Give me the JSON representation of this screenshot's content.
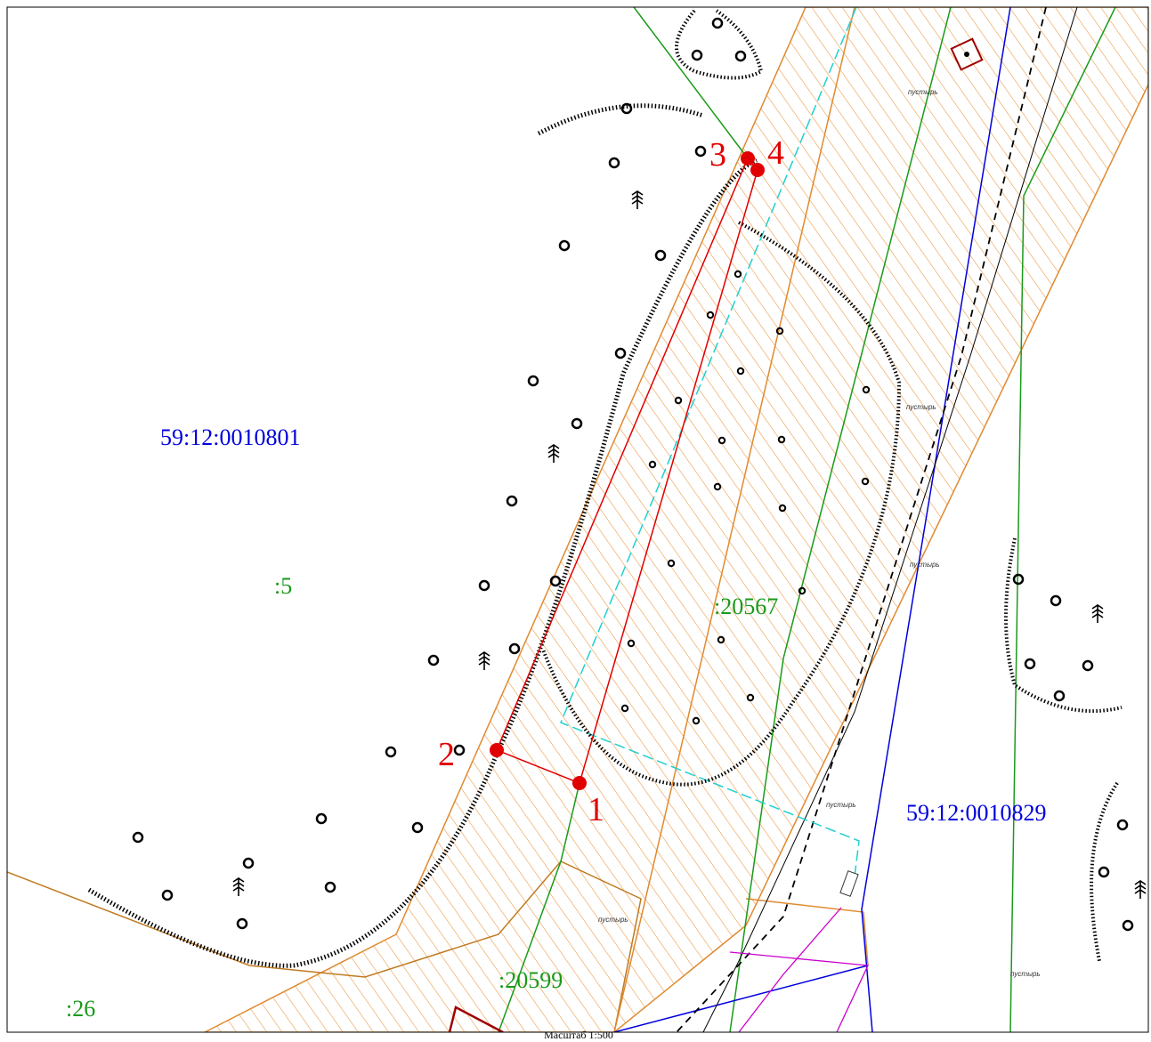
{
  "parcels": [
    {
      "label": "59:12:0010801"
    },
    {
      "label": ":5"
    },
    {
      "label": ":20567"
    },
    {
      "label": "59:12:0010829"
    },
    {
      "label": ":20599"
    },
    {
      "label": ":26"
    }
  ],
  "points": [
    {
      "label": "1"
    },
    {
      "label": "2"
    },
    {
      "label": "3"
    },
    {
      "label": "4"
    }
  ],
  "land_notes": [
    "пустырь",
    "пустырь",
    "пустырь",
    "пустырь",
    "пустырь",
    "пустырь"
  ],
  "scale": "Масштаб 1:500"
}
